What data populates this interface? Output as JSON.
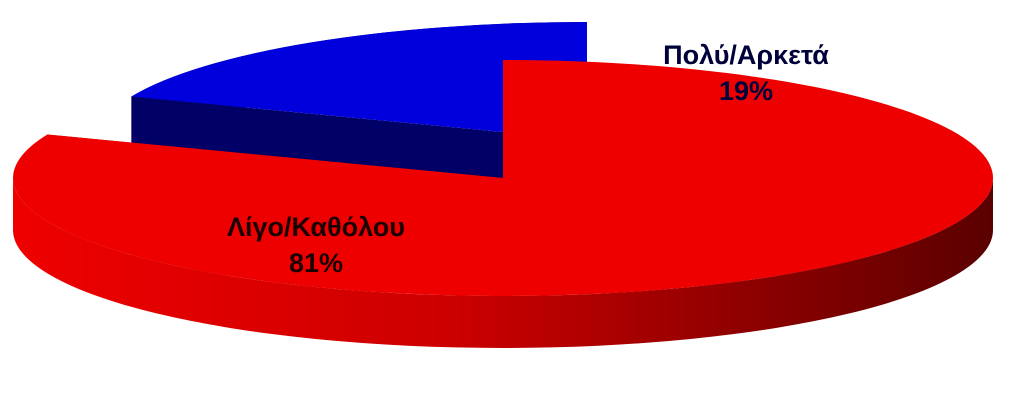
{
  "chart_data": {
    "type": "pie",
    "style": "3d-exploded",
    "slices": [
      {
        "category": "Λίγο/Καθόλου",
        "value": 81,
        "percent_label": "81%",
        "color": "#ee0000",
        "side_color_light": "#dd0000",
        "side_color_dark": "#660000",
        "label_color": "#1a0000"
      },
      {
        "category": "Πολύ/Αρκετά",
        "value": 19,
        "percent_label": "19%",
        "color": "#0000dd",
        "side_color_light": "#000066",
        "side_color_dark": "#00003a",
        "label_color": "#00003a"
      }
    ]
  }
}
